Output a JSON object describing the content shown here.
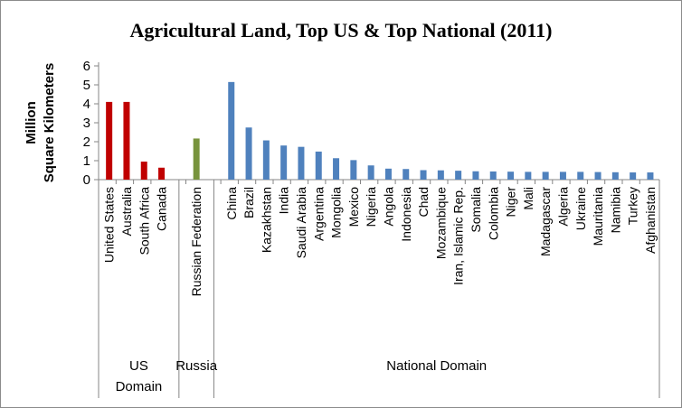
{
  "chart_data": {
    "type": "bar",
    "title": "Agricultural Land, Top US & Top National (2011)",
    "ylabel_lines": [
      "Million",
      "Square Kilometers"
    ],
    "ylim": [
      0,
      6
    ],
    "yticks": [
      "0",
      "1",
      "2",
      "3",
      "4",
      "5",
      "6"
    ],
    "grid": false,
    "legend": "none",
    "groups": [
      {
        "name_lines": [
          "US",
          "Domain"
        ],
        "color": "#c00000",
        "categories": [
          "United States",
          "Australia",
          "South Africa",
          "Canada"
        ],
        "values": [
          4.1,
          4.1,
          0.95,
          0.63
        ]
      },
      {
        "name_lines": [
          "Russia"
        ],
        "color": "#77933c",
        "categories": [
          "Russian Federation"
        ],
        "values": [
          2.17
        ]
      },
      {
        "name_lines": [
          "National Domain"
        ],
        "color": "#4f81bd",
        "categories": [
          "China",
          "Brazil",
          "Kazakhstan",
          "India",
          "Saudi Arabia",
          "Argentina",
          "Mongolia",
          "Mexico",
          "Nigeria",
          "Angola",
          "Indonesia",
          "Chad",
          "Mozambique",
          "Iran, Islamic Rep.",
          "Somalia",
          "Colombia",
          "Niger",
          "Mali",
          "Madagascar",
          "Algeria",
          "Ukraine",
          "Mauritania",
          "Namibia",
          "Turkey",
          "Afghanistan"
        ],
        "values": [
          5.15,
          2.75,
          2.07,
          1.8,
          1.73,
          1.48,
          1.13,
          1.03,
          0.75,
          0.58,
          0.56,
          0.5,
          0.49,
          0.47,
          0.44,
          0.43,
          0.42,
          0.41,
          0.41,
          0.41,
          0.41,
          0.4,
          0.39,
          0.38,
          0.38
        ]
      }
    ]
  }
}
